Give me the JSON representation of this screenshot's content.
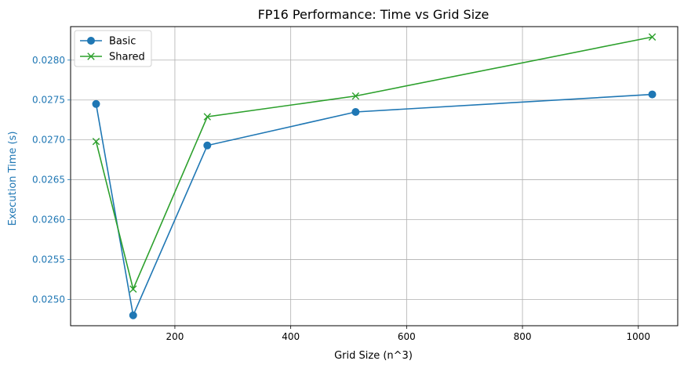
{
  "chart_data": {
    "type": "line",
    "title": "FP16 Performance: Time vs Grid Size",
    "xlabel": "Grid Size (n^3)",
    "ylabel": "Execution Time (s)",
    "xlim": [
      20,
      1068
    ],
    "ylim": [
      0.02467,
      0.02842
    ],
    "xticks": [
      200,
      400,
      600,
      800,
      1000
    ],
    "xtick_labels": [
      "200",
      "400",
      "600",
      "800",
      "1000"
    ],
    "yticks": [
      0.025,
      0.0255,
      0.026,
      0.0265,
      0.027,
      0.0275,
      0.028
    ],
    "ytick_labels": [
      "0.0250",
      "0.0255",
      "0.0260",
      "0.0265",
      "0.0270",
      "0.0275",
      "0.0280"
    ],
    "grid": true,
    "legend_position": "top-left",
    "x": [
      64,
      128,
      256,
      512,
      1024
    ],
    "series": [
      {
        "name": "Basic",
        "values": [
          0.02745,
          0.0248,
          0.02693,
          0.02735,
          0.02757
        ],
        "color": "#1f77b4",
        "marker": "circle"
      },
      {
        "name": "Shared",
        "values": [
          0.02698,
          0.02513,
          0.02729,
          0.02755,
          0.02829
        ],
        "color": "#2ca02c",
        "marker": "x"
      }
    ],
    "ylabel_color": "#1f77b4"
  }
}
